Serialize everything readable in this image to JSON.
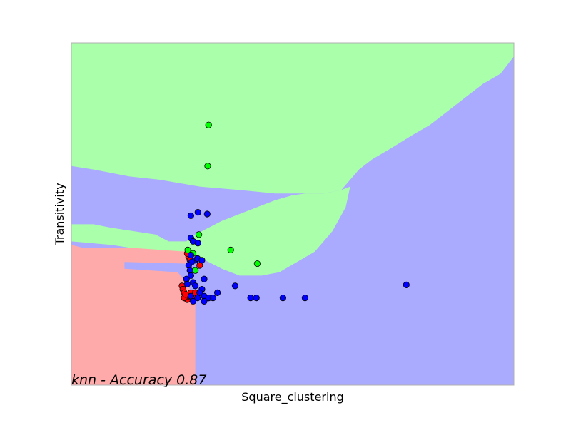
{
  "chart_data": {
    "type": "scatter",
    "title": "",
    "xlabel": "Square_clustering",
    "ylabel": "Transitivity",
    "annotation": "knn - Accuracy 0.87",
    "xlim": [
      0,
      1
    ],
    "ylim": [
      0,
      1
    ],
    "grid": false,
    "ticks_visible": false,
    "class_colors": {
      "red": {
        "region": "#ffaaaa",
        "point": "#ff0000"
      },
      "green": {
        "region": "#aaffaa",
        "point": "#00ff00"
      },
      "blue": {
        "region": "#aaaaff",
        "point": "#0000ff"
      }
    },
    "regions": {
      "green_upper_boundary": [
        [
          0.0,
          0.64
        ],
        [
          0.05,
          0.63
        ],
        [
          0.09,
          0.62
        ],
        [
          0.13,
          0.61
        ],
        [
          0.2,
          0.6
        ],
        [
          0.29,
          0.58
        ],
        [
          0.38,
          0.57
        ],
        [
          0.46,
          0.56
        ],
        [
          0.52,
          0.56
        ],
        [
          0.57,
          0.56
        ],
        [
          0.61,
          0.57
        ],
        [
          0.63,
          0.6
        ],
        [
          0.65,
          0.63
        ],
        [
          0.68,
          0.66
        ],
        [
          0.72,
          0.69
        ],
        [
          0.77,
          0.73
        ],
        [
          0.81,
          0.76
        ],
        [
          0.85,
          0.8
        ],
        [
          0.89,
          0.84
        ],
        [
          0.93,
          0.88
        ],
        [
          0.97,
          0.91
        ],
        [
          1.0,
          0.96
        ],
        [
          1.0,
          1.0
        ],
        [
          0.0,
          1.0
        ]
      ],
      "green_lower_band": [
        [
          0.0,
          0.47
        ],
        [
          0.05,
          0.47
        ],
        [
          0.09,
          0.46
        ],
        [
          0.14,
          0.45
        ],
        [
          0.19,
          0.44
        ],
        [
          0.22,
          0.42
        ],
        [
          0.26,
          0.42
        ],
        [
          0.28,
          0.44
        ],
        [
          0.31,
          0.46
        ],
        [
          0.34,
          0.48
        ],
        [
          0.38,
          0.5
        ],
        [
          0.42,
          0.52
        ],
        [
          0.46,
          0.54
        ],
        [
          0.5,
          0.555
        ],
        [
          0.53,
          0.56
        ],
        [
          0.57,
          0.56
        ],
        [
          0.61,
          0.57
        ],
        [
          0.63,
          0.58
        ],
        [
          0.62,
          0.52
        ],
        [
          0.59,
          0.45
        ],
        [
          0.55,
          0.39
        ],
        [
          0.51,
          0.36
        ],
        [
          0.47,
          0.33
        ],
        [
          0.43,
          0.32
        ],
        [
          0.38,
          0.32
        ],
        [
          0.34,
          0.34
        ],
        [
          0.31,
          0.36
        ],
        [
          0.28,
          0.38
        ],
        [
          0.25,
          0.39
        ],
        [
          0.2,
          0.39
        ],
        [
          0.14,
          0.4
        ],
        [
          0.09,
          0.41
        ],
        [
          0.0,
          0.42
        ]
      ],
      "red_region": [
        [
          0.0,
          0.41
        ],
        [
          0.03,
          0.4
        ],
        [
          0.15,
          0.4
        ],
        [
          0.26,
          0.39
        ],
        [
          0.26,
          0.355
        ],
        [
          0.12,
          0.36
        ],
        [
          0.12,
          0.34
        ],
        [
          0.24,
          0.33
        ],
        [
          0.26,
          0.3
        ],
        [
          0.28,
          0.25
        ],
        [
          0.28,
          0.0
        ],
        [
          0.0,
          0.0
        ]
      ]
    },
    "series": [
      {
        "name": "",
        "color": "#ff0000",
        "points": [
          [
            0.25,
            0.29
          ],
          [
            0.252,
            0.28
          ],
          [
            0.255,
            0.27
          ],
          [
            0.26,
            0.26
          ],
          [
            0.262,
            0.25
          ],
          [
            0.265,
            0.26
          ],
          [
            0.27,
            0.27
          ],
          [
            0.265,
            0.375
          ],
          [
            0.262,
            0.385
          ],
          [
            0.268,
            0.365
          ],
          [
            0.29,
            0.35
          ],
          [
            0.28,
            0.27
          ],
          [
            0.275,
            0.255
          ],
          [
            0.255,
            0.255
          ],
          [
            0.258,
            0.265
          ]
        ]
      },
      {
        "name": "",
        "color": "#00ff00",
        "points": [
          [
            0.31,
            0.76
          ],
          [
            0.308,
            0.64
          ],
          [
            0.288,
            0.44
          ],
          [
            0.263,
            0.395
          ],
          [
            0.275,
            0.385
          ],
          [
            0.36,
            0.395
          ],
          [
            0.42,
            0.355
          ],
          [
            0.28,
            0.335
          ],
          [
            0.31,
            0.255
          ]
        ]
      },
      {
        "name": "",
        "color": "#0000ff",
        "points": [
          [
            0.27,
            0.495
          ],
          [
            0.286,
            0.505
          ],
          [
            0.307,
            0.5
          ],
          [
            0.27,
            0.43
          ],
          [
            0.275,
            0.42
          ],
          [
            0.286,
            0.415
          ],
          [
            0.28,
            0.365
          ],
          [
            0.272,
            0.36
          ],
          [
            0.285,
            0.37
          ],
          [
            0.295,
            0.365
          ],
          [
            0.27,
            0.38
          ],
          [
            0.265,
            0.35
          ],
          [
            0.268,
            0.335
          ],
          [
            0.27,
            0.32
          ],
          [
            0.275,
            0.3
          ],
          [
            0.28,
            0.29
          ],
          [
            0.26,
            0.31
          ],
          [
            0.262,
            0.295
          ],
          [
            0.3,
            0.31
          ],
          [
            0.295,
            0.28
          ],
          [
            0.29,
            0.27
          ],
          [
            0.3,
            0.26
          ],
          [
            0.31,
            0.255
          ],
          [
            0.32,
            0.255
          ],
          [
            0.33,
            0.27
          ],
          [
            0.37,
            0.29
          ],
          [
            0.405,
            0.255
          ],
          [
            0.418,
            0.255
          ],
          [
            0.478,
            0.255
          ],
          [
            0.528,
            0.255
          ],
          [
            0.757,
            0.293
          ],
          [
            0.27,
            0.26
          ],
          [
            0.285,
            0.255
          ],
          [
            0.275,
            0.245
          ],
          [
            0.3,
            0.245
          ]
        ]
      }
    ]
  }
}
